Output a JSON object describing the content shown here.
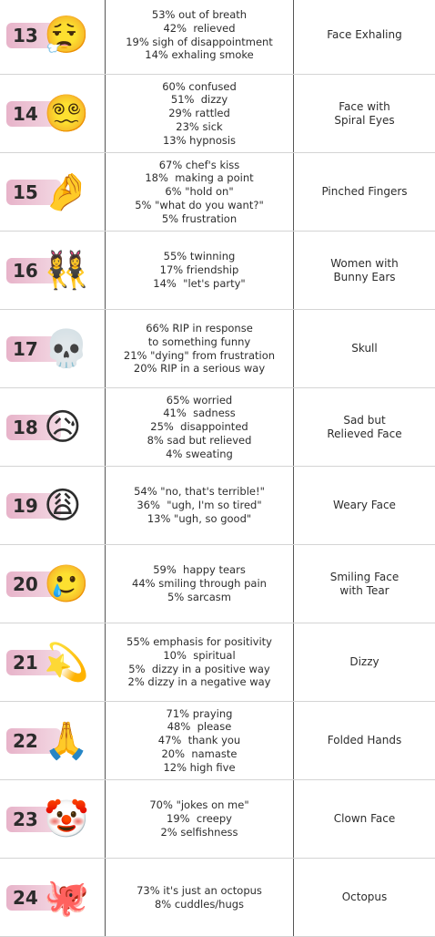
{
  "table": {
    "rows": [
      {
        "number": "13",
        "emoji": "😮‍💨",
        "meanings": [
          "53% out of breath",
          "42%  relieved",
          "19% sigh of disappointment",
          "14% exhaling smoke"
        ],
        "name": [
          "Face Exhaling"
        ]
      },
      {
        "number": "14",
        "emoji": "😵‍💫",
        "meanings": [
          "60% confused",
          "51%  dizzy",
          "29% rattled",
          "23% sick",
          "13% hypnosis"
        ],
        "name": [
          "Face with",
          "Spiral Eyes"
        ]
      },
      {
        "number": "15",
        "emoji": "🤌",
        "meanings": [
          "67% chef's kiss",
          "18%  making a point",
          "6% \"hold on\"",
          "5% \"what do you want?\"",
          "5% frustration"
        ],
        "name": [
          "Pinched Fingers"
        ]
      },
      {
        "number": "16",
        "emoji": "👯‍♀️",
        "meanings": [
          "55% twinning",
          "17% friendship",
          "14%  \"let's party\""
        ],
        "name": [
          "Women with",
          "Bunny Ears"
        ]
      },
      {
        "number": "17",
        "emoji": "💀",
        "meanings": [
          "66% RIP in response",
          "to something funny",
          "21% \"dying\" from frustration",
          "20% RIP in a serious way"
        ],
        "name": [
          "Skull"
        ]
      },
      {
        "number": "18",
        "emoji": "😥",
        "meanings": [
          "65% worried",
          "41%  sadness",
          "25%  disappointed",
          "8% sad but relieved",
          "4% sweating"
        ],
        "name": [
          "Sad but",
          "Relieved Face"
        ]
      },
      {
        "number": "19",
        "emoji": "😩",
        "meanings": [
          "54% \"no, that's terrible!\"",
          "36%  \"ugh, I'm so tired\"",
          "13% \"ugh, so good\""
        ],
        "name": [
          "Weary Face"
        ]
      },
      {
        "number": "20",
        "emoji": "🥲",
        "meanings": [
          "59%  happy tears",
          "44% smiling through pain",
          "5% sarcasm"
        ],
        "name": [
          "Smiling Face",
          "with Tear"
        ]
      },
      {
        "number": "21",
        "emoji": "💫",
        "meanings": [
          "55% emphasis for positivity",
          "10%  spiritual",
          "5%  dizzy in a positive way",
          "2% dizzy in a negative way"
        ],
        "name": [
          "Dizzy"
        ]
      },
      {
        "number": "22",
        "emoji": "🙏",
        "meanings": [
          "71% praying",
          "48%  please",
          "47%  thank you",
          "20%  namaste",
          "12% high five"
        ],
        "name": [
          "Folded Hands"
        ]
      },
      {
        "number": "23",
        "emoji": "🤡",
        "meanings": [
          "70% \"jokes on me\"",
          "19%  creepy",
          "2% selfishness"
        ],
        "name": [
          "Clown Face"
        ]
      },
      {
        "number": "24",
        "emoji": "🐙",
        "meanings": [
          "73% it's just an octopus",
          "8% cuddles/hugs"
        ],
        "name": [
          "Octopus"
        ]
      }
    ]
  }
}
